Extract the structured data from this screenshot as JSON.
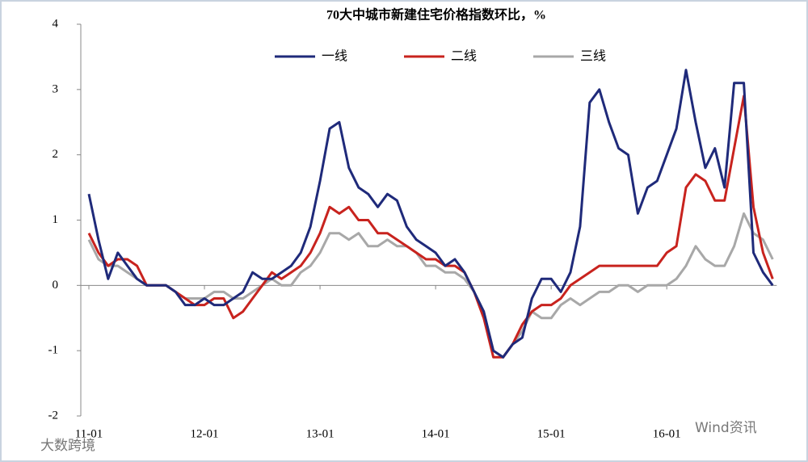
{
  "chart_data": {
    "type": "line",
    "title": "70大中城市新建住宅价格指数环比，%",
    "categories": [
      "11-01",
      null,
      null,
      null,
      null,
      null,
      null,
      null,
      null,
      null,
      null,
      null,
      "12-01",
      null,
      null,
      null,
      null,
      null,
      null,
      null,
      null,
      null,
      null,
      null,
      "13-01",
      null,
      null,
      null,
      null,
      null,
      null,
      null,
      null,
      null,
      null,
      null,
      "14-01",
      null,
      null,
      null,
      null,
      null,
      null,
      null,
      null,
      null,
      null,
      null,
      "15-01",
      null,
      null,
      null,
      null,
      null,
      null,
      null,
      null,
      null,
      null,
      null,
      "16-01",
      null,
      null,
      null,
      null,
      null,
      null,
      null,
      null,
      null,
      null,
      null
    ],
    "series": [
      {
        "name": "一线",
        "color": "#1f2a7a",
        "values": [
          1.4,
          0.7,
          0.1,
          0.5,
          0.3,
          0.1,
          0.0,
          0.0,
          0.0,
          -0.1,
          -0.3,
          -0.3,
          -0.2,
          -0.3,
          -0.3,
          -0.2,
          -0.1,
          0.2,
          0.1,
          0.1,
          0.2,
          0.3,
          0.5,
          0.9,
          1.6,
          2.4,
          2.5,
          1.8,
          1.5,
          1.4,
          1.2,
          1.4,
          1.3,
          0.9,
          0.7,
          0.6,
          0.5,
          0.3,
          0.4,
          0.2,
          -0.1,
          -0.4,
          -1.0,
          -1.1,
          -0.9,
          -0.8,
          -0.2,
          0.1,
          0.1,
          -0.1,
          0.2,
          0.9,
          2.8,
          3.0,
          2.5,
          2.1,
          2.0,
          1.1,
          1.5,
          1.6,
          2.0,
          2.4,
          3.3,
          2.5,
          1.8,
          2.1,
          1.5,
          3.1,
          3.1,
          0.5,
          0.2,
          0.0
        ]
      },
      {
        "name": "二线",
        "color": "#c8231e",
        "values": [
          0.8,
          0.5,
          0.3,
          0.4,
          0.4,
          0.3,
          0.0,
          0.0,
          0.0,
          -0.1,
          -0.2,
          -0.3,
          -0.3,
          -0.2,
          -0.2,
          -0.5,
          -0.4,
          -0.2,
          0.0,
          0.2,
          0.1,
          0.2,
          0.3,
          0.5,
          0.8,
          1.2,
          1.1,
          1.2,
          1.0,
          1.0,
          0.8,
          0.8,
          0.7,
          0.6,
          0.5,
          0.4,
          0.4,
          0.3,
          0.3,
          0.2,
          -0.1,
          -0.5,
          -1.1,
          -1.1,
          -0.9,
          -0.6,
          -0.4,
          -0.3,
          -0.3,
          -0.2,
          0.0,
          0.1,
          0.2,
          0.3,
          0.3,
          0.3,
          0.3,
          0.3,
          0.3,
          0.3,
          0.5,
          0.6,
          1.5,
          1.7,
          1.6,
          1.3,
          1.3,
          2.1,
          2.9,
          1.2,
          0.5,
          0.1
        ]
      },
      {
        "name": "三线",
        "color": "#a8a8a8",
        "values": [
          0.7,
          0.4,
          0.3,
          0.3,
          0.2,
          0.1,
          0.0,
          0.0,
          0.0,
          -0.1,
          -0.2,
          -0.2,
          -0.2,
          -0.1,
          -0.1,
          -0.2,
          -0.2,
          -0.1,
          0.0,
          0.1,
          0.0,
          0.0,
          0.2,
          0.3,
          0.5,
          0.8,
          0.8,
          0.7,
          0.8,
          0.6,
          0.6,
          0.7,
          0.6,
          0.6,
          0.5,
          0.3,
          0.3,
          0.2,
          0.2,
          0.1,
          -0.1,
          -0.4,
          -1.0,
          -1.1,
          -0.9,
          -0.7,
          -0.4,
          -0.5,
          -0.5,
          -0.3,
          -0.2,
          -0.3,
          -0.2,
          -0.1,
          -0.1,
          0.0,
          0.0,
          -0.1,
          0.0,
          0.0,
          0.0,
          0.1,
          0.3,
          0.6,
          0.4,
          0.3,
          0.3,
          0.6,
          1.1,
          0.8,
          0.7,
          0.4
        ]
      }
    ],
    "ylim": [
      -2,
      4
    ],
    "yticks": [
      -2,
      -1,
      0,
      1,
      2,
      3,
      4
    ],
    "watermarks": [
      "Wind资讯",
      "大数跨境"
    ]
  }
}
